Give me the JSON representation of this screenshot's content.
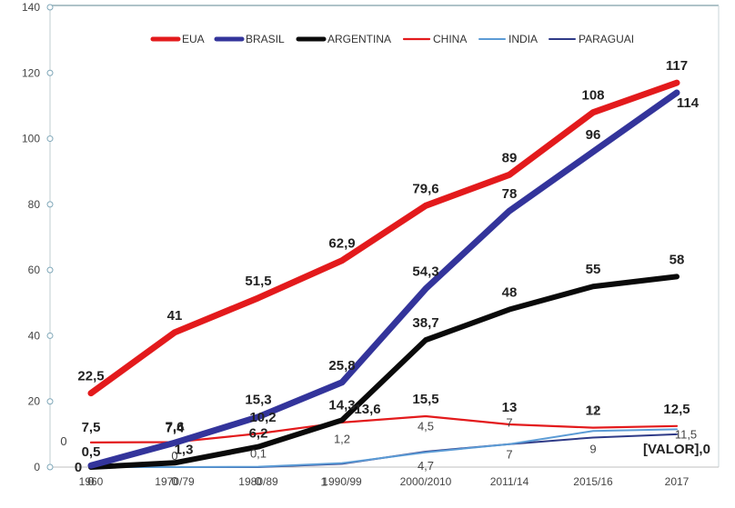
{
  "chart_data": {
    "type": "line",
    "categories": [
      "1960",
      "1970/79",
      "1980/89",
      "1990/99",
      "2000/2010",
      "2011/14",
      "2015/16",
      "2017"
    ],
    "ylim": [
      0,
      140
    ],
    "yticks": [
      0,
      20,
      40,
      60,
      80,
      100,
      120,
      140
    ],
    "grid": false,
    "legend_position": "top",
    "series": [
      {
        "name": "EUA",
        "color": "#e31a1c",
        "width": 7,
        "values": [
          22.5,
          41,
          51.5,
          62.9,
          79.6,
          89,
          108,
          117
        ],
        "labels": [
          "22,5",
          "41",
          "51,5",
          "62,9",
          "79,6",
          "89",
          "108",
          "117"
        ]
      },
      {
        "name": "BRASIL",
        "color": "#33349b",
        "width": 7,
        "values": [
          0.5,
          7.4,
          15.3,
          25.8,
          54.3,
          78,
          96,
          114
        ],
        "labels": [
          "0,5",
          "7,4",
          "15,3",
          "25,8",
          "54,3",
          "78",
          "96",
          "114"
        ]
      },
      {
        "name": "ARGENTINA",
        "color": "#0a0a0a",
        "width": 6,
        "values": [
          0,
          1.3,
          6.2,
          14.3,
          38.7,
          48,
          55,
          58
        ],
        "labels": [
          "0",
          "1,3",
          "6,2",
          "14,3",
          "38,7",
          "48",
          "55",
          "58"
        ]
      },
      {
        "name": "CHINA",
        "color": "#e31a1c",
        "width": 2.2,
        "values": [
          7.5,
          7.6,
          10.2,
          13.6,
          15.5,
          13,
          12,
          12.5
        ],
        "labels": [
          "7,5",
          "7,6",
          "10,2",
          "13,6",
          "15,5",
          "13",
          "12",
          "12,5"
        ]
      },
      {
        "name": "INDIA",
        "color": "#5b9bd5",
        "width": 2,
        "values": [
          0,
          0,
          0.1,
          1.2,
          4.5,
          7,
          11,
          11.5
        ],
        "labels": [
          "0",
          "0",
          "0,1",
          "1,2",
          "4,5",
          "7",
          "11",
          "11,5"
        ]
      },
      {
        "name": "PARAGUAI",
        "color": "#2e3a87",
        "width": 2,
        "values": [
          0,
          0,
          0,
          1,
          4.7,
          7,
          9,
          10
        ],
        "labels": [
          "0",
          "0",
          "0",
          "1",
          "4,7",
          "7",
          "9",
          "[VALOR],0"
        ]
      }
    ]
  }
}
